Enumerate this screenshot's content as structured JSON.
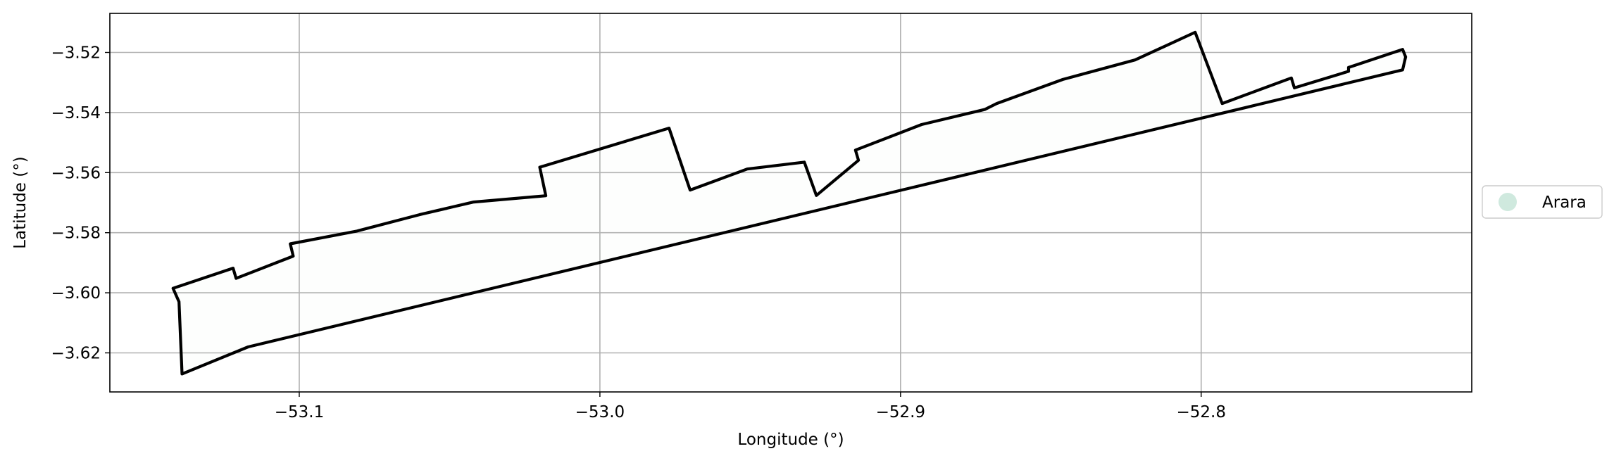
{
  "chart_data": {
    "type": "line",
    "subtype": "map-boundary",
    "xlabel": "Longitude (°)",
    "ylabel": "Latitude (°)",
    "xlim": [
      -53.163,
      -52.71
    ],
    "ylim": [
      -3.633,
      -3.507
    ],
    "xticks": [
      {
        "value": -53.1,
        "label": "−53.1"
      },
      {
        "value": -53.0,
        "label": "−53.0"
      },
      {
        "value": -52.9,
        "label": "−52.9"
      },
      {
        "value": -52.8,
        "label": "−52.8"
      }
    ],
    "yticks": [
      {
        "value": -3.52,
        "label": "−3.52"
      },
      {
        "value": -3.54,
        "label": "−3.54"
      },
      {
        "value": -3.56,
        "label": "−3.56"
      },
      {
        "value": -3.58,
        "label": "−3.58"
      },
      {
        "value": -3.6,
        "label": "−3.60"
      },
      {
        "value": -3.62,
        "label": "−3.62"
      }
    ],
    "grid": true,
    "legend_position": "right",
    "legend": [
      {
        "label": "Arara",
        "color": "#cfe9de"
      }
    ],
    "outline_color": "#000000",
    "fill_color": "#cfe9de",
    "grid_color": "#b0b0b0",
    "series": [
      {
        "name": "Arara",
        "points": [
          [
            -53.142,
            -3.5985
          ],
          [
            -53.122,
            -3.5918
          ],
          [
            -53.121,
            -3.5952
          ],
          [
            -53.102,
            -3.5878
          ],
          [
            -53.103,
            -3.5837
          ],
          [
            -53.081,
            -3.5795
          ],
          [
            -53.06,
            -3.574
          ],
          [
            -53.042,
            -3.5698
          ],
          [
            -53.018,
            -3.5677
          ],
          [
            -53.02,
            -3.5582
          ],
          [
            -52.977,
            -3.5452
          ],
          [
            -52.97,
            -3.5658
          ],
          [
            -52.951,
            -3.5588
          ],
          [
            -52.932,
            -3.5565
          ],
          [
            -52.928,
            -3.5676
          ],
          [
            -52.914,
            -3.5559
          ],
          [
            -52.915,
            -3.5525
          ],
          [
            -52.893,
            -3.544
          ],
          [
            -52.872,
            -3.539
          ],
          [
            -52.868,
            -3.537
          ],
          [
            -52.846,
            -3.529
          ],
          [
            -52.822,
            -3.5225
          ],
          [
            -52.802,
            -3.5133
          ],
          [
            -52.793,
            -3.537
          ],
          [
            -52.77,
            -3.5285
          ],
          [
            -52.769,
            -3.5318
          ],
          [
            -52.751,
            -3.5263
          ],
          [
            -52.751,
            -3.525
          ],
          [
            -52.733,
            -3.519
          ],
          [
            -52.732,
            -3.5215
          ],
          [
            -52.733,
            -3.5258
          ],
          [
            -53.117,
            -3.618
          ],
          [
            -53.139,
            -3.627
          ],
          [
            -53.14,
            -3.603
          ],
          [
            -53.142,
            -3.5985
          ]
        ]
      }
    ]
  }
}
